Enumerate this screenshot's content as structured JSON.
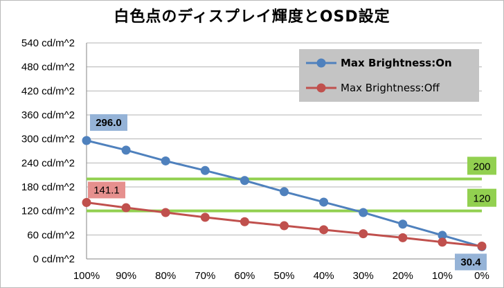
{
  "chart_data": {
    "type": "line",
    "title": "白色点のディスプレイ輝度とOSD設定",
    "xlabel": "",
    "ylabel": "",
    "categories": [
      "100%",
      "90%",
      "80%",
      "70%",
      "60%",
      "50%",
      "40%",
      "30%",
      "20%",
      "10%",
      "0%"
    ],
    "y_ticks": [
      "0 cd/m^2",
      "60 cd/m^2",
      "120 cd/m^2",
      "180 cd/m^2",
      "240 cd/m^2",
      "300 cd/m^2",
      "360 cd/m^2",
      "420 cd/m^2",
      "480 cd/m^2",
      "540 cd/m^2"
    ],
    "ylim": [
      0,
      540
    ],
    "grid": "horizontal",
    "legend_position": "top-right",
    "series": [
      {
        "name": "Max Brightness:On",
        "color": "#4f81bd",
        "values": [
          296.0,
          272,
          245,
          221,
          196,
          168,
          142,
          116,
          87,
          59,
          30.4
        ]
      },
      {
        "name": "Max Brightness:Off",
        "color": "#c0504d",
        "values": [
          141.1,
          128,
          116,
          104,
          93,
          83,
          73,
          63,
          53,
          42,
          32
        ]
      }
    ],
    "reference_lines": [
      {
        "value": 200,
        "label": "200",
        "color": "#92d050"
      },
      {
        "value": 120,
        "label": "120",
        "color": "#92d050"
      }
    ],
    "annotations": [
      {
        "text": "296.0",
        "series": 0,
        "index": 0,
        "bg": "#95b3d7",
        "bold": true
      },
      {
        "text": "141.1",
        "series": 1,
        "index": 0,
        "bg": "#e6908e",
        "bold": false
      },
      {
        "text": "30.4",
        "series": 0,
        "index": 10,
        "bg": "#95b3d7",
        "bold": true
      }
    ]
  }
}
